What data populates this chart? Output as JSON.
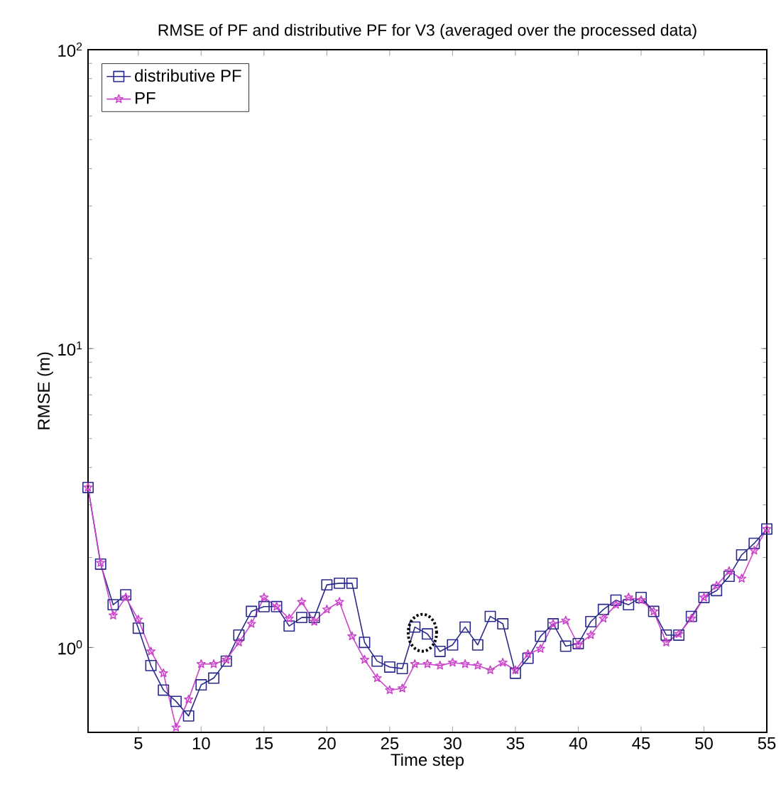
{
  "chart_data": {
    "type": "line",
    "title": "RMSE of PF and distributive PF for V3 (averaged over the processed data)",
    "xlabel": "Time step",
    "ylabel": "RMSE (m)",
    "log": "y",
    "legend": "top left",
    "grid": false,
    "x": [
      1,
      2,
      3,
      4,
      5,
      6,
      7,
      8,
      9,
      10,
      11,
      12,
      13,
      14,
      15,
      16,
      17,
      18,
      19,
      20,
      21,
      22,
      23,
      24,
      25,
      26,
      27,
      28,
      29,
      30,
      31,
      32,
      33,
      34,
      35,
      36,
      37,
      38,
      39,
      40,
      41,
      42,
      43,
      44,
      45,
      46,
      47,
      48,
      49,
      50,
      51,
      52,
      53,
      54,
      55
    ],
    "xlim": [
      1,
      55
    ],
    "xticks": [
      5,
      10,
      15,
      20,
      25,
      30,
      35,
      40,
      45,
      50,
      55
    ],
    "ylim": [
      0.52,
      100
    ],
    "yticks": [
      {
        "value": 1,
        "label": "10$^{0}$"
      },
      {
        "value": 10,
        "label": "10$^{1}$"
      },
      {
        "value": 100,
        "label": "10$^{2}$"
      }
    ],
    "series": [
      {
        "name": "distributive PF",
        "color": "#2a2a8c",
        "marker": "square",
        "values": [
          3.43,
          1.9,
          1.39,
          1.5,
          1.16,
          0.87,
          0.72,
          0.66,
          0.59,
          0.75,
          0.79,
          0.9,
          1.1,
          1.32,
          1.37,
          1.37,
          1.18,
          1.26,
          1.26,
          1.62,
          1.64,
          1.64,
          1.04,
          0.9,
          0.86,
          0.85,
          1.17,
          1.11,
          0.97,
          1.02,
          1.17,
          1.02,
          1.27,
          1.2,
          0.82,
          0.92,
          1.09,
          1.2,
          1.01,
          1.03,
          1.22,
          1.34,
          1.44,
          1.39,
          1.47,
          1.32,
          1.1,
          1.1,
          1.27,
          1.47,
          1.55,
          1.73,
          2.04,
          2.23,
          2.49
        ]
      },
      {
        "name": "PF",
        "color": "#cc44cc",
        "marker": "star",
        "values": [
          3.43,
          1.92,
          1.28,
          1.47,
          1.24,
          0.97,
          0.82,
          0.54,
          0.67,
          0.88,
          0.88,
          0.91,
          1.04,
          1.2,
          1.47,
          1.37,
          1.25,
          1.42,
          1.22,
          1.34,
          1.42,
          1.09,
          0.91,
          0.79,
          0.72,
          0.73,
          0.88,
          0.88,
          0.87,
          0.89,
          0.88,
          0.87,
          0.84,
          0.89,
          0.84,
          0.95,
          0.99,
          1.2,
          1.23,
          1.02,
          1.1,
          1.25,
          1.39,
          1.47,
          1.44,
          1.32,
          1.04,
          1.11,
          1.25,
          1.47,
          1.61,
          1.8,
          1.7,
          2.11,
          2.49
        ]
      }
    ]
  }
}
